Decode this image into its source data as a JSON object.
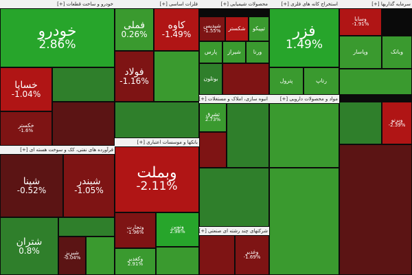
{
  "sectors": [
    {
      "id": "s1",
      "label": "خودرو و ساخت قطعات [+]"
    },
    {
      "id": "s2",
      "label": "فلزات اساسی [+]"
    },
    {
      "id": "s3",
      "label": "محصولات شیمیایی [+]"
    },
    {
      "id": "s4",
      "label": "استخراج کانه های فلزی [+]"
    },
    {
      "id": "s5",
      "label": "سرمایه گذاریها [+]"
    },
    {
      "id": "s6",
      "label": "فرآورده های نفتی، کک و سوخت هسته ای [+]"
    },
    {
      "id": "s7",
      "label": "بانکها و موسسات اعتباری [+]"
    },
    {
      "id": "s8",
      "label": "انبوه سازی، املاک و مستغلات [+]"
    },
    {
      "id": "s9",
      "label": "مواد و محصولات دارویی [+]"
    },
    {
      "id": "s10",
      "label": "شرکتهای چند رشته ای صنعتی [+]"
    }
  ],
  "tiles": [
    {
      "id": "t1",
      "name": "خودرو",
      "change": "2.86%",
      "color": "up-strong",
      "size": "big"
    },
    {
      "id": "t2",
      "name": "خساپا",
      "change": "-1.04%",
      "color": "down-strong",
      "size": "mid"
    },
    {
      "id": "t3",
      "name": "خکستر",
      "change": "-1.6%",
      "color": "down",
      "size": "small"
    },
    {
      "id": "t4",
      "name": "فملی",
      "change": "0.26%",
      "color": "up",
      "size": "mid"
    },
    {
      "id": "t5",
      "name": "کاوه",
      "change": "-1.49%",
      "color": "down-strong",
      "size": "mid"
    },
    {
      "id": "t6",
      "name": "فولاد",
      "change": "-1.16%",
      "color": "down",
      "size": "mid"
    },
    {
      "id": "t7",
      "name": "فزر",
      "change": "1.49%",
      "color": "up-strong",
      "size": "big"
    },
    {
      "id": "t8",
      "name": "وسایا",
      "change": "-1.91%",
      "color": "down-strong",
      "size": "small"
    },
    {
      "id": "t9",
      "name": "وبملت",
      "change": "-2.11%",
      "color": "down-strong",
      "size": "big"
    },
    {
      "id": "t10",
      "name": "شپنا",
      "change": "-0.52%",
      "color": "down-weak",
      "size": "mid"
    },
    {
      "id": "t11",
      "name": "شبندر",
      "change": "-1.05%",
      "color": "down",
      "size": "mid"
    },
    {
      "id": "t12",
      "name": "شتران",
      "change": "0.8%",
      "color": "up-weak",
      "size": "mid"
    },
    {
      "id": "t13",
      "name": "شبریز",
      "change": "-0.04%",
      "color": "down-weak",
      "size": "small"
    },
    {
      "id": "t14",
      "name": "وتجارت",
      "change": "-1.96%",
      "color": "down",
      "size": "small"
    },
    {
      "id": "t15",
      "name": "وکغدیر",
      "change": "2.91%",
      "color": "up",
      "size": "small"
    },
    {
      "id": "t16",
      "name": "ونوین",
      "change": "2.98%",
      "color": "up-strong",
      "size": "small"
    },
    {
      "id": "t17",
      "name": "وغدیر",
      "change": "-1.69%",
      "color": "down",
      "size": "small"
    },
    {
      "id": "t18",
      "name": "وبرنو",
      "change": "-2.39%",
      "color": "down-strong",
      "size": "small"
    },
    {
      "id": "t19",
      "name": "ثشرق",
      "change": "2.73%",
      "color": "up",
      "size": "small"
    },
    {
      "id": "t20",
      "name": "شپدیس",
      "change": "-1.55%",
      "color": "down",
      "size": "small"
    },
    {
      "id": "t21",
      "name": "شکستر",
      "change": "",
      "color": "down-strong",
      "size": "small"
    },
    {
      "id": "t22",
      "name": "تیپیکو",
      "change": "",
      "color": "up",
      "size": "small"
    },
    {
      "id": "t23",
      "name": "پارس",
      "change": "",
      "color": "up",
      "size": "small"
    },
    {
      "id": "t24",
      "name": "شیراز",
      "change": "",
      "color": "up",
      "size": "small"
    },
    {
      "id": "t25",
      "name": "ورنا",
      "change": "",
      "color": "up",
      "size": "small"
    },
    {
      "id": "t26",
      "name": "بوتلون",
      "change": "",
      "color": "up-weak",
      "size": "small"
    },
    {
      "id": "t27",
      "name": "وپاسار",
      "change": "",
      "color": "up",
      "size": "small"
    },
    {
      "id": "t28",
      "name": "وبانک",
      "change": "",
      "color": "up",
      "size": "small"
    },
    {
      "id": "t29",
      "name": "پترول",
      "change": "",
      "color": "up",
      "size": "small"
    },
    {
      "id": "t30",
      "name": "رتاپ",
      "change": "",
      "color": "up",
      "size": "small"
    }
  ]
}
